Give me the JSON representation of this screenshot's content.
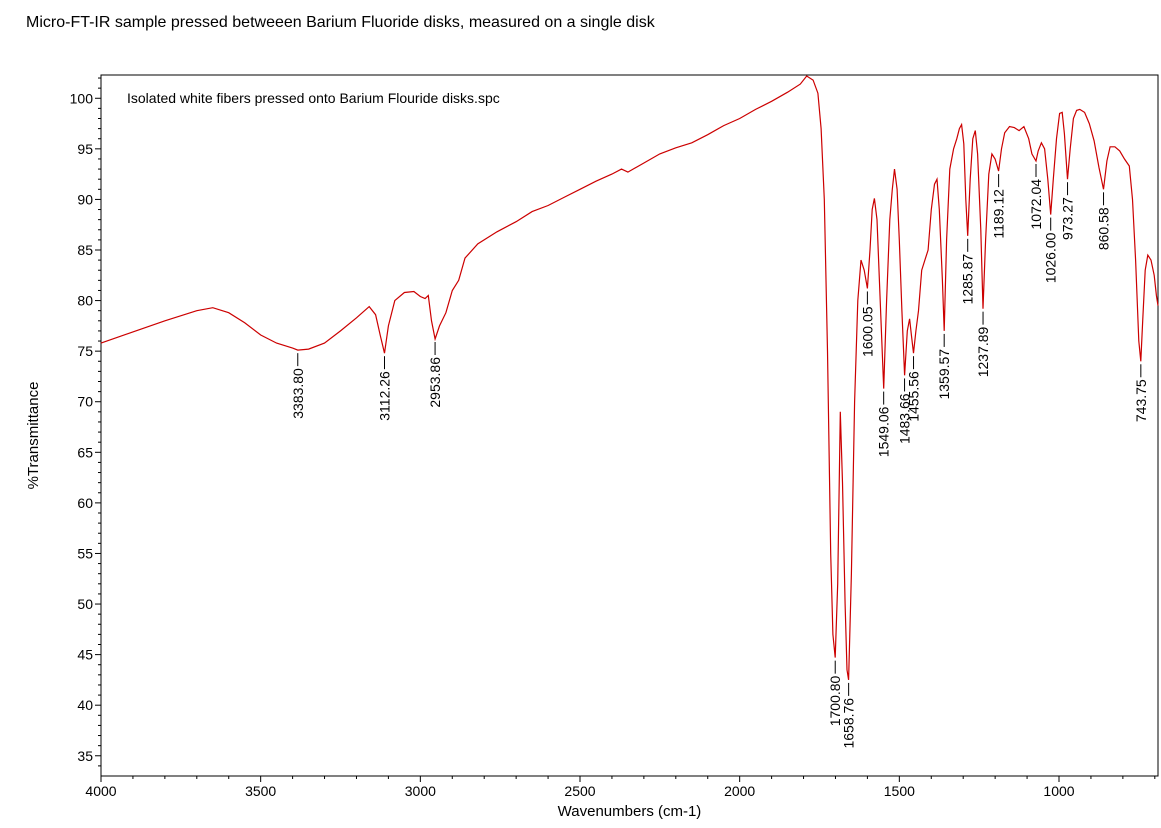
{
  "title": "Micro-FT-IR sample pressed betweeen Barium Fluoride disks, measured on a single disk",
  "chart_data": {
    "type": "line",
    "title": "Micro-FT-IR sample pressed betweeen Barium Fluoride disks, measured on a single disk",
    "inner_title": "Isolated white fibers pressed onto Barium Flouride disks.spc",
    "xlabel": "Wavenumbers (cm-1)",
    "ylabel": "%Transmittance",
    "xlim": [
      4000,
      690
    ],
    "ylim": [
      33,
      102.3
    ],
    "x_reversed": true,
    "grid": false,
    "legend": "none",
    "line_color": "#cc0000",
    "x_ticks": [
      4000,
      3500,
      3000,
      2500,
      2000,
      1500,
      1000
    ],
    "x_tick_labels": [
      "4000",
      "3500",
      "3000",
      "2500",
      "2000",
      "1500",
      "1000"
    ],
    "y_ticks": [
      35,
      40,
      45,
      50,
      55,
      60,
      65,
      70,
      75,
      80,
      85,
      90,
      95,
      100
    ],
    "y_tick_labels": [
      "35",
      "40",
      "45",
      "50",
      "55",
      "60",
      "65",
      "70",
      "75",
      "80",
      "85",
      "90",
      "95",
      "100"
    ],
    "series": [
      {
        "points": [
          [
            4000,
            75.8
          ],
          [
            3900,
            76.9
          ],
          [
            3800,
            78.0
          ],
          [
            3700,
            79.0
          ],
          [
            3650,
            79.3
          ],
          [
            3600,
            78.8
          ],
          [
            3550,
            77.8
          ],
          [
            3500,
            76.6
          ],
          [
            3450,
            75.8
          ],
          [
            3400,
            75.3
          ],
          [
            3383.8,
            75.1
          ],
          [
            3350,
            75.2
          ],
          [
            3300,
            75.8
          ],
          [
            3250,
            77.0
          ],
          [
            3200,
            78.3
          ],
          [
            3160,
            79.4
          ],
          [
            3140,
            78.6
          ],
          [
            3125,
            76.5
          ],
          [
            3112.26,
            74.8
          ],
          [
            3100,
            77.5
          ],
          [
            3080,
            80.0
          ],
          [
            3050,
            80.8
          ],
          [
            3020,
            80.9
          ],
          [
            3000,
            80.4
          ],
          [
            2985,
            80.2
          ],
          [
            2975,
            80.5
          ],
          [
            2965,
            78.0
          ],
          [
            2953.86,
            76.2
          ],
          [
            2940,
            77.5
          ],
          [
            2920,
            78.8
          ],
          [
            2900,
            81.0
          ],
          [
            2880,
            82.0
          ],
          [
            2860,
            84.2
          ],
          [
            2820,
            85.6
          ],
          [
            2760,
            86.8
          ],
          [
            2700,
            87.8
          ],
          [
            2650,
            88.8
          ],
          [
            2600,
            89.4
          ],
          [
            2550,
            90.2
          ],
          [
            2500,
            91.0
          ],
          [
            2450,
            91.8
          ],
          [
            2400,
            92.5
          ],
          [
            2370,
            93.0
          ],
          [
            2350,
            92.7
          ],
          [
            2300,
            93.6
          ],
          [
            2250,
            94.5
          ],
          [
            2200,
            95.1
          ],
          [
            2150,
            95.6
          ],
          [
            2100,
            96.4
          ],
          [
            2050,
            97.3
          ],
          [
            2000,
            98.0
          ],
          [
            1950,
            98.9
          ],
          [
            1900,
            99.7
          ],
          [
            1850,
            100.6
          ],
          [
            1810,
            101.4
          ],
          [
            1790,
            102.2
          ],
          [
            1770,
            101.8
          ],
          [
            1755,
            100.5
          ],
          [
            1745,
            97.0
          ],
          [
            1735,
            90.0
          ],
          [
            1725,
            75.0
          ],
          [
            1715,
            55.0
          ],
          [
            1708,
            47.0
          ],
          [
            1700.8,
            44.7
          ],
          [
            1693,
            52.0
          ],
          [
            1685,
            69.0
          ],
          [
            1678,
            62.0
          ],
          [
            1670,
            50.0
          ],
          [
            1664,
            43.5
          ],
          [
            1658.76,
            42.5
          ],
          [
            1650,
            53.0
          ],
          [
            1640,
            70.0
          ],
          [
            1630,
            80.0
          ],
          [
            1620,
            84.0
          ],
          [
            1610,
            83.0
          ],
          [
            1600.05,
            81.2
          ],
          [
            1592,
            85.0
          ],
          [
            1585,
            89.0
          ],
          [
            1578,
            90.1
          ],
          [
            1570,
            88.0
          ],
          [
            1560,
            80.0
          ],
          [
            1549.06,
            71.3
          ],
          [
            1540,
            80.0
          ],
          [
            1530,
            88.0
          ],
          [
            1522,
            91.0
          ],
          [
            1515,
            93.0
          ],
          [
            1507,
            91.0
          ],
          [
            1500,
            86.0
          ],
          [
            1492,
            79.0
          ],
          [
            1483.66,
            72.6
          ],
          [
            1475,
            77.0
          ],
          [
            1468,
            78.2
          ],
          [
            1462,
            76.5
          ],
          [
            1455.56,
            74.8
          ],
          [
            1448,
            77.0
          ],
          [
            1440,
            79.0
          ],
          [
            1430,
            83.0
          ],
          [
            1420,
            84.0
          ],
          [
            1410,
            85.0
          ],
          [
            1400,
            89.0
          ],
          [
            1390,
            91.5
          ],
          [
            1382,
            92.0
          ],
          [
            1375,
            89.0
          ],
          [
            1365,
            82.0
          ],
          [
            1359.57,
            77.0
          ],
          [
            1352,
            86.0
          ],
          [
            1342,
            93.0
          ],
          [
            1330,
            95.0
          ],
          [
            1320,
            96.0
          ],
          [
            1312,
            97.0
          ],
          [
            1305,
            97.4
          ],
          [
            1298,
            95.5
          ],
          [
            1292,
            90.0
          ],
          [
            1285.87,
            86.4
          ],
          [
            1278,
            92.0
          ],
          [
            1270,
            96.0
          ],
          [
            1262,
            96.8
          ],
          [
            1255,
            94.5
          ],
          [
            1245,
            87.0
          ],
          [
            1237.89,
            79.2
          ],
          [
            1230,
            86.0
          ],
          [
            1220,
            92.5
          ],
          [
            1210,
            94.5
          ],
          [
            1200,
            94.0
          ],
          [
            1189.12,
            92.8
          ],
          [
            1180,
            95.0
          ],
          [
            1170,
            96.6
          ],
          [
            1155,
            97.2
          ],
          [
            1140,
            97.1
          ],
          [
            1125,
            96.8
          ],
          [
            1110,
            97.2
          ],
          [
            1095,
            96.0
          ],
          [
            1085,
            94.5
          ],
          [
            1072.04,
            93.8
          ],
          [
            1065,
            94.8
          ],
          [
            1055,
            95.6
          ],
          [
            1045,
            95.0
          ],
          [
            1035,
            92.0
          ],
          [
            1026.0,
            88.5
          ],
          [
            1018,
            92.0
          ],
          [
            1008,
            96.0
          ],
          [
            998,
            98.5
          ],
          [
            990,
            98.6
          ],
          [
            983,
            96.5
          ],
          [
            973.27,
            92.0
          ],
          [
            965,
            95.0
          ],
          [
            955,
            98.0
          ],
          [
            945,
            98.8
          ],
          [
            935,
            98.9
          ],
          [
            920,
            98.6
          ],
          [
            905,
            97.5
          ],
          [
            890,
            95.8
          ],
          [
            875,
            93.2
          ],
          [
            860.58,
            91.0
          ],
          [
            850,
            93.8
          ],
          [
            840,
            95.2
          ],
          [
            825,
            95.2
          ],
          [
            810,
            94.8
          ],
          [
            795,
            94.0
          ],
          [
            780,
            93.3
          ],
          [
            770,
            90.0
          ],
          [
            760,
            84.0
          ],
          [
            750,
            76.0
          ],
          [
            743.75,
            74.0
          ],
          [
            738,
            78.0
          ],
          [
            730,
            83.0
          ],
          [
            722,
            84.5
          ],
          [
            712,
            84.0
          ],
          [
            702,
            82.5
          ],
          [
            695,
            80.5
          ],
          [
            690,
            79.5
          ]
        ]
      }
    ],
    "peak_labels": [
      {
        "x": 3383.8,
        "y": 75.1,
        "label": "3383.80",
        "side": "below"
      },
      {
        "x": 3112.26,
        "y": 74.8,
        "label": "3112.26",
        "side": "below"
      },
      {
        "x": 2953.86,
        "y": 76.2,
        "label": "2953.86",
        "side": "below"
      },
      {
        "x": 1700.8,
        "y": 44.7,
        "label": "1700.80",
        "side": "below"
      },
      {
        "x": 1658.76,
        "y": 42.5,
        "label": "1658.76",
        "side": "below"
      },
      {
        "x": 1600.05,
        "y": 81.2,
        "label": "1600.05",
        "side": "below"
      },
      {
        "x": 1549.06,
        "y": 71.3,
        "label": "1549.06",
        "side": "below"
      },
      {
        "x": 1483.66,
        "y": 72.6,
        "label": "1483.66",
        "side": "below"
      },
      {
        "x": 1455.56,
        "y": 74.8,
        "label": "1455.56",
        "side": "below"
      },
      {
        "x": 1359.57,
        "y": 77.0,
        "label": "1359.57",
        "side": "below"
      },
      {
        "x": 1285.87,
        "y": 86.4,
        "label": "1285.87",
        "side": "below"
      },
      {
        "x": 1237.89,
        "y": 79.2,
        "label": "1237.89",
        "side": "below"
      },
      {
        "x": 1189.12,
        "y": 92.8,
        "label": "1189.12",
        "side": "below"
      },
      {
        "x": 1072.04,
        "y": 93.8,
        "label": "1072.04",
        "side": "below"
      },
      {
        "x": 1026.0,
        "y": 88.5,
        "label": "1026.00",
        "side": "below"
      },
      {
        "x": 973.27,
        "y": 92.0,
        "label": "973.27",
        "side": "below"
      },
      {
        "x": 860.58,
        "y": 91.0,
        "label": "860.58",
        "side": "below"
      },
      {
        "x": 743.75,
        "y": 74.0,
        "label": "743.75",
        "side": "below"
      }
    ]
  }
}
